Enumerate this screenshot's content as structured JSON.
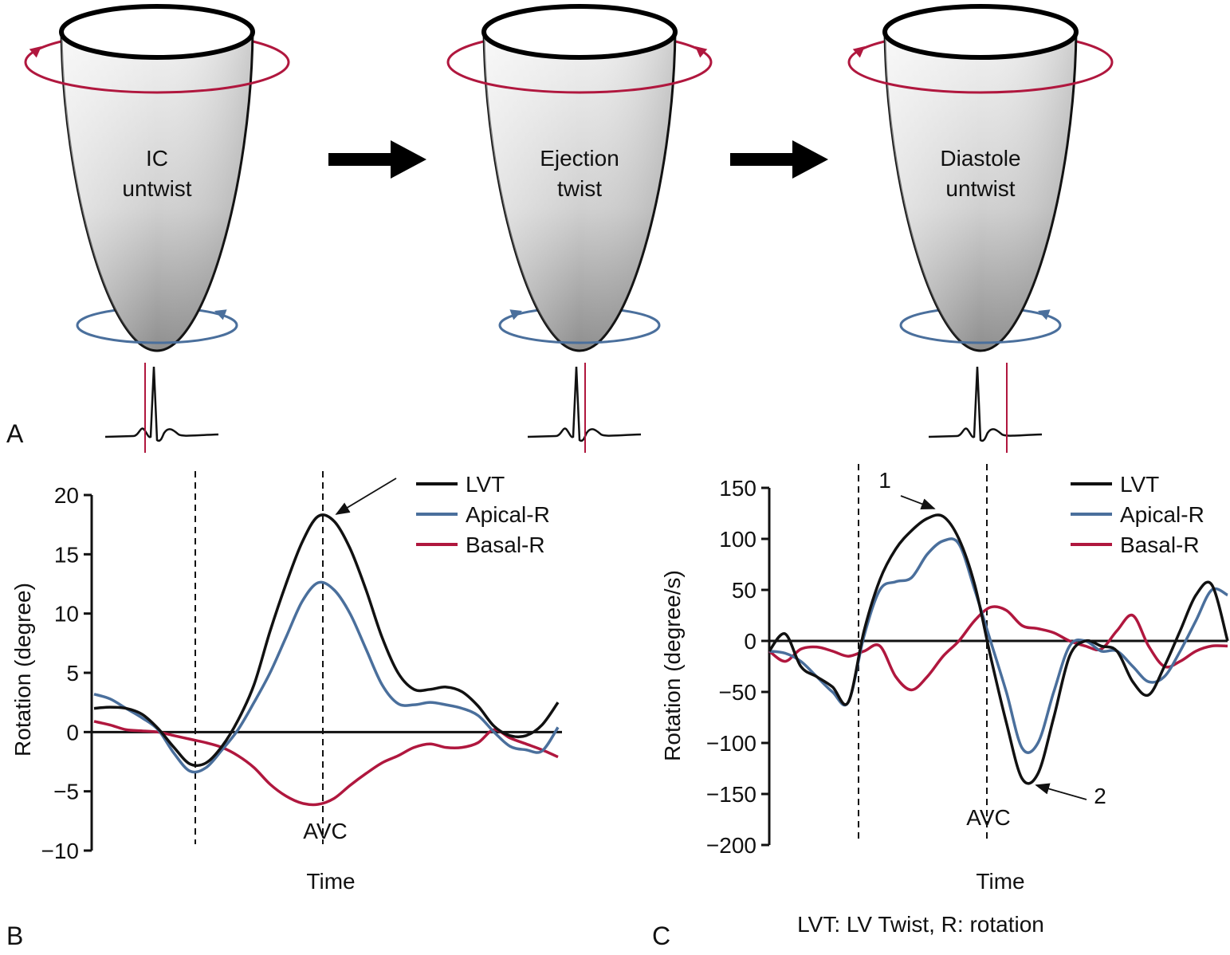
{
  "panel_a": {
    "label": "A",
    "stages": [
      {
        "lines": [
          "IC",
          "untwist"
        ]
      },
      {
        "lines": [
          "Ejection",
          "twist"
        ]
      },
      {
        "lines": [
          "Diastole",
          "untwist"
        ]
      }
    ]
  },
  "chart_data": [
    {
      "type": "line",
      "panel_label": "B",
      "y_label": "Rotation (degree)",
      "x_label": "Time",
      "categories": [
        null,
        null,
        null,
        null,
        null,
        null,
        null,
        null,
        null,
        null,
        null,
        null,
        null,
        null,
        null,
        null,
        null,
        null,
        null,
        null,
        null,
        null,
        null,
        null,
        null,
        null,
        null,
        null,
        null,
        null
      ],
      "series": [
        {
          "name": "LVT",
          "color": "#111111",
          "values": [
            2.0,
            2.1,
            2.0,
            1.5,
            0.3,
            -1.3,
            -2.7,
            -2.6,
            -1.2,
            1.0,
            4.0,
            8.5,
            12.5,
            16.0,
            18.2,
            17.8,
            15.5,
            12.0,
            8.0,
            5.0,
            3.6,
            3.6,
            3.8,
            3.4,
            2.2,
            0.5,
            -0.3,
            -0.3,
            0.6,
            2.5
          ]
        },
        {
          "name": "Apical-R",
          "color": "#4a6f9c",
          "values": [
            3.2,
            2.8,
            2.0,
            1.2,
            0.2,
            -1.8,
            -3.3,
            -3.0,
            -1.5,
            0.2,
            2.5,
            5,
            8,
            11,
            12.6,
            12,
            10,
            7,
            4,
            2.4,
            2.3,
            2.5,
            2.3,
            2.0,
            1.4,
            0,
            -1.2,
            -1.5,
            -1.6,
            0.4
          ]
        },
        {
          "name": "Basal-R",
          "color": "#b0173e",
          "values": [
            0.9,
            0.6,
            0.2,
            0.1,
            0,
            -0.3,
            -0.6,
            -0.9,
            -1.3,
            -2.0,
            -3.0,
            -4.4,
            -5.4,
            -6.0,
            -6.1,
            -5.6,
            -4.5,
            -3.5,
            -2.6,
            -2.0,
            -1.3,
            -1.0,
            -1.3,
            -1.3,
            -0.9,
            0.2,
            -0.5,
            -1.0,
            -1.5,
            -2.1
          ]
        }
      ],
      "ylim": [
        -10,
        20
      ],
      "yticks": [
        {
          "value": -10,
          "label": "−10"
        },
        {
          "value": -5,
          "label": "−5"
        },
        0,
        5,
        10,
        15,
        20
      ],
      "annotations": [
        {
          "text": "AVC"
        }
      ]
    },
    {
      "type": "line",
      "panel_label": "C",
      "y_label": "Rotation (degree/s)",
      "x_label": "Time",
      "categories": [
        null,
        null,
        null,
        null,
        null,
        null,
        null,
        null,
        null,
        null,
        null,
        null,
        null,
        null,
        null,
        null,
        null,
        null,
        null,
        null,
        null,
        null,
        null,
        null,
        null,
        null,
        null,
        null,
        null,
        null
      ],
      "series": [
        {
          "name": "LVT",
          "color": "#111111",
          "values": [
            -10,
            7,
            -25,
            -35,
            -45,
            -60,
            10,
            60,
            90,
            108,
            120,
            122,
            100,
            55,
            -15,
            -80,
            -135,
            -130,
            -75,
            -15,
            0,
            -5,
            -10,
            -40,
            -53,
            -25,
            10,
            45,
            55,
            0
          ]
        },
        {
          "name": "Apical-R",
          "color": "#4a6f9c",
          "values": [
            -10,
            -12,
            -20,
            -35,
            -50,
            -60,
            5,
            50,
            58,
            62,
            85,
            98,
            95,
            50,
            0,
            -50,
            -105,
            -100,
            -50,
            -5,
            0,
            -10,
            -10,
            -25,
            -40,
            -35,
            -10,
            20,
            50,
            45
          ]
        },
        {
          "name": "Basal-R",
          "color": "#b0173e",
          "values": [
            -10,
            -20,
            -8,
            -6,
            -10,
            -15,
            -10,
            -5,
            -35,
            -48,
            -35,
            -15,
            0,
            20,
            33,
            30,
            15,
            12,
            8,
            0,
            -5,
            -8,
            10,
            25,
            -5,
            -25,
            -20,
            -10,
            -5,
            -5
          ]
        }
      ],
      "ylim": [
        -200,
        150
      ],
      "yticks": [
        {
          "value": -200,
          "label": "−200"
        },
        {
          "value": -150,
          "label": "−150"
        },
        {
          "value": -100,
          "label": "−100"
        },
        {
          "value": -50,
          "label": "−50"
        },
        0,
        50,
        100,
        150
      ],
      "annotations": [
        {
          "text": "AVC"
        },
        {
          "text": "1"
        },
        {
          "text": "2"
        }
      ],
      "caption": "LVT: LV Twist, R: rotation"
    }
  ]
}
